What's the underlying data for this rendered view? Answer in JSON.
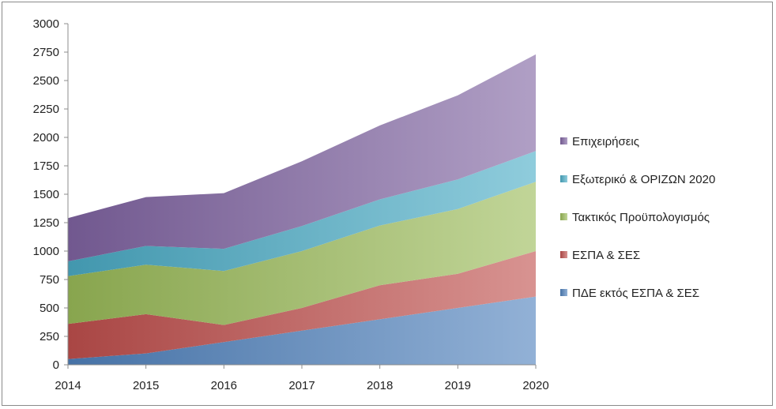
{
  "chart_data": {
    "type": "area",
    "stacked": true,
    "x": [
      2014,
      2015,
      2016,
      2017,
      2018,
      2019,
      2020
    ],
    "ylim": [
      0,
      3000
    ],
    "yticks": [
      0,
      250,
      500,
      750,
      1000,
      1250,
      1500,
      1750,
      2000,
      2250,
      2500,
      2750,
      3000
    ],
    "grid": false,
    "legend_position": "right",
    "series": [
      {
        "name": "ΠΔΕ  εκτός ΕΣΠΑ & ΣΕΣ",
        "values": [
          50,
          100,
          200,
          300,
          400,
          500,
          600
        ],
        "color": "#4f81bd"
      },
      {
        "name": "ΕΣΠΑ & ΣΕΣ",
        "values": [
          310,
          345,
          150,
          200,
          300,
          300,
          400
        ],
        "color": "#c0504d"
      },
      {
        "name": "Τακτικός Προϋπολογισμός",
        "values": [
          420,
          435,
          475,
          500,
          525,
          570,
          610
        ],
        "color": "#9bbb59"
      },
      {
        "name": "Εξωτερικό & ΟΡΙΖΩΝ 2020",
        "values": [
          130,
          165,
          195,
          220,
          230,
          260,
          270
        ],
        "color": "#4bacc6"
      },
      {
        "name": "Επιχειρήσεις",
        "values": [
          380,
          430,
          490,
          570,
          650,
          740,
          850
        ],
        "color": "#8064a2"
      }
    ]
  }
}
